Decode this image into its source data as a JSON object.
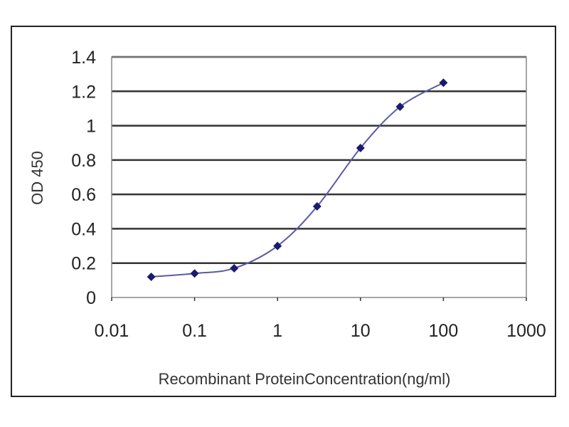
{
  "chart_data": {
    "type": "line",
    "title": "",
    "xlabel": "Recombinant ProteinConcentration(ng/ml)",
    "ylabel": "OD 450",
    "x_scale": "log",
    "xlim": [
      0.01,
      1000
    ],
    "ylim": [
      0,
      1.4
    ],
    "x_ticks": [
      "0.01",
      "0.1",
      "1",
      "10",
      "100",
      "1000"
    ],
    "y_ticks": [
      "0",
      "0.2",
      "0.4",
      "0.6",
      "0.8",
      "1",
      "1.2",
      "1.4"
    ],
    "grid": "horizontal",
    "legend": "none",
    "series": [
      {
        "x": [
          0.03,
          0.1,
          0.3,
          1,
          3,
          10,
          30,
          100
        ],
        "y": [
          0.12,
          0.14,
          0.17,
          0.3,
          0.53,
          0.87,
          1.11,
          1.25
        ],
        "color": "#1a1a6e",
        "line_color": "#5a5aa8"
      }
    ]
  }
}
